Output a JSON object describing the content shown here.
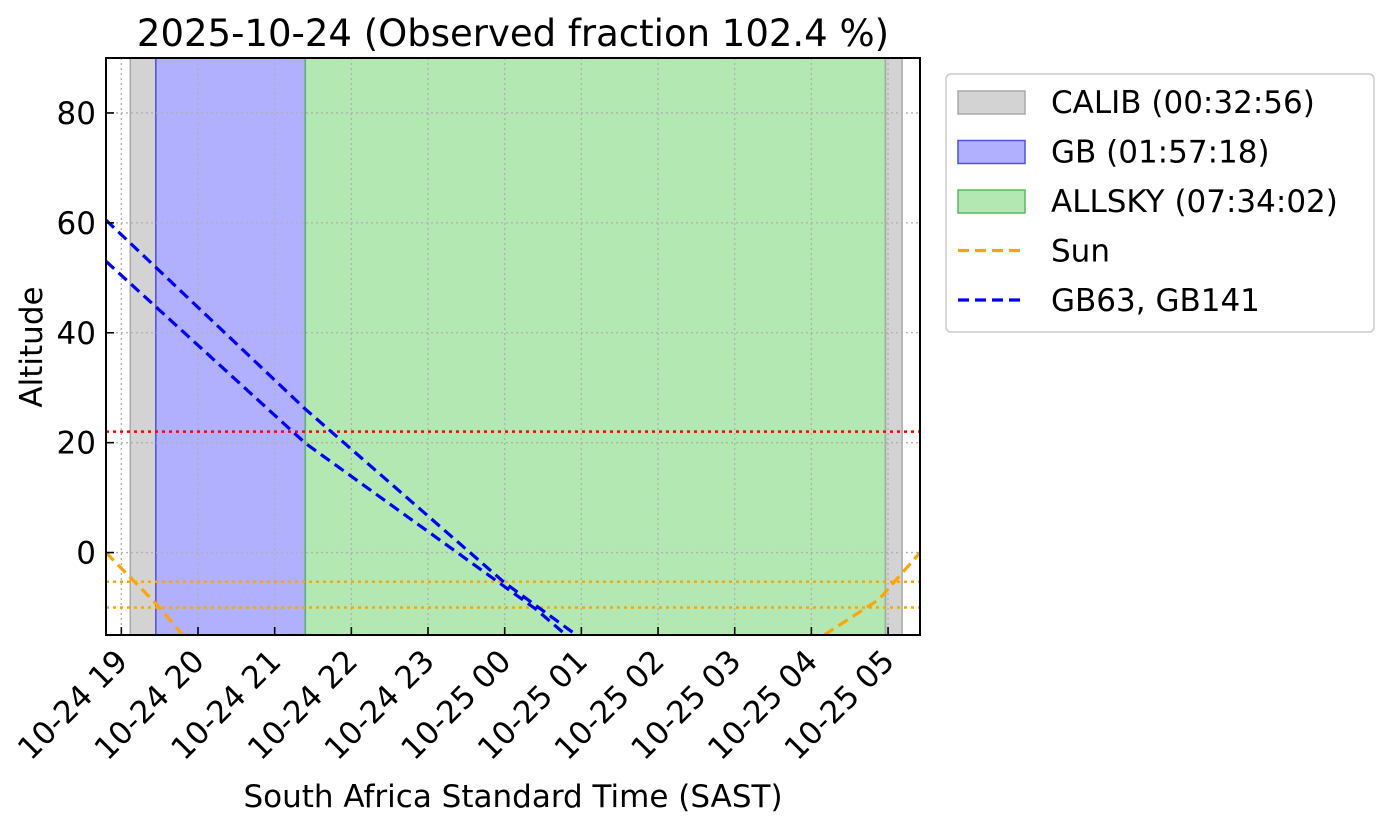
{
  "chart_data": {
    "type": "line",
    "title": "2025-10-24 (Observed fraction 102.4 %)",
    "xlabel": "South Africa Standard Time (SAST)",
    "ylabel": "Altitude",
    "xlim": [
      "2025-10-24 18:48",
      "2025-10-25 05:25"
    ],
    "ylim": [
      -15,
      90
    ],
    "grid": true,
    "legend_position": "outside-right",
    "x_ticks": [
      {
        "time": "2025-10-24 19:00",
        "label": "10-24 19"
      },
      {
        "time": "2025-10-24 20:00",
        "label": "10-24 20"
      },
      {
        "time": "2025-10-24 21:00",
        "label": "10-24 21"
      },
      {
        "time": "2025-10-24 22:00",
        "label": "10-24 22"
      },
      {
        "time": "2025-10-24 23:00",
        "label": "10-24 23"
      },
      {
        "time": "2025-10-25 00:00",
        "label": "10-25 00"
      },
      {
        "time": "2025-10-25 01:00",
        "label": "10-25 01"
      },
      {
        "time": "2025-10-25 02:00",
        "label": "10-25 02"
      },
      {
        "time": "2025-10-25 03:00",
        "label": "10-25 03"
      },
      {
        "time": "2025-10-25 04:00",
        "label": "10-25 04"
      },
      {
        "time": "2025-10-25 05:00",
        "label": "10-25 05"
      }
    ],
    "y_ticks": [
      0,
      20,
      40,
      60,
      80
    ],
    "spans": [
      {
        "name": "CALIB (00:32:56)",
        "start": "2025-10-24 19:07",
        "end": "2025-10-24 19:27",
        "fill": "#d3d3d3",
        "edge": "#a9a9a9",
        "legend": true
      },
      {
        "name": "GB (01:57:18)",
        "start": "2025-10-24 19:27",
        "end": "2025-10-24 21:24",
        "fill": "#b0b0ff",
        "edge": "#5050e0",
        "legend": true
      },
      {
        "name": "ALLSKY (07:34:02)",
        "start": "2025-10-24 21:24",
        "end": "2025-10-25 04:58",
        "fill": "#b3e8b3",
        "edge": "#5cb85c",
        "legend": true
      },
      {
        "name": "CALIB (00:32:56)",
        "start": "2025-10-25 04:58",
        "end": "2025-10-25 05:11",
        "fill": "#d3d3d3",
        "edge": "#a9a9a9",
        "legend": false
      }
    ],
    "hlines": [
      {
        "y": 22,
        "color": "#ff0000",
        "style": "dotted"
      },
      {
        "y": -5.3,
        "color": "#ffa500",
        "style": "dotted"
      },
      {
        "y": -10,
        "color": "#ffa500",
        "style": "dotted"
      }
    ],
    "series": [
      {
        "name": "Sun",
        "color": "#ffa500",
        "style": "dashed",
        "segments": [
          [
            [
              "2025-10-24 18:48",
              0
            ],
            [
              "2025-10-24 19:28",
              -9.5
            ],
            [
              "2025-10-24 19:48",
              -15
            ]
          ],
          [
            [
              "2025-10-25 04:10",
              -15
            ],
            [
              "2025-10-25 04:53",
              -8.5
            ],
            [
              "2025-10-25 05:25",
              0
            ]
          ]
        ]
      },
      {
        "name": "GB63, GB141",
        "color": "#0000ff",
        "style": "dashed",
        "segments": [
          [
            [
              "2025-10-24 18:48",
              60.5
            ],
            [
              "2025-10-24 21:24",
              26.1
            ],
            [
              "2025-10-25 00:00",
              -5.5
            ],
            [
              "2025-10-25 00:56",
              -15
            ]
          ]
        ]
      },
      {
        "name": "",
        "color": "#0000ff",
        "style": "dashed",
        "legend": false,
        "segments": [
          [
            [
              "2025-10-24 18:48",
              53
            ],
            [
              "2025-10-24 21:24",
              19.9
            ],
            [
              "2025-10-25 00:25",
              -10.4
            ],
            [
              "2025-10-25 00:48",
              -15
            ]
          ]
        ]
      }
    ],
    "legend": [
      {
        "label": "CALIB (00:32:56)",
        "kind": "patch",
        "fill": "#d3d3d3",
        "edge": "#a9a9a9"
      },
      {
        "label": "GB (01:57:18)",
        "kind": "patch",
        "fill": "#b0b0ff",
        "edge": "#5050e0"
      },
      {
        "label": "ALLSKY (07:34:02)",
        "kind": "patch",
        "fill": "#b3e8b3",
        "edge": "#5cb85c"
      },
      {
        "label": "Sun",
        "kind": "line",
        "color": "#ffa500",
        "style": "dashed"
      },
      {
        "label": "GB63, GB141",
        "kind": "line",
        "color": "#0000ff",
        "style": "dashed"
      }
    ]
  }
}
